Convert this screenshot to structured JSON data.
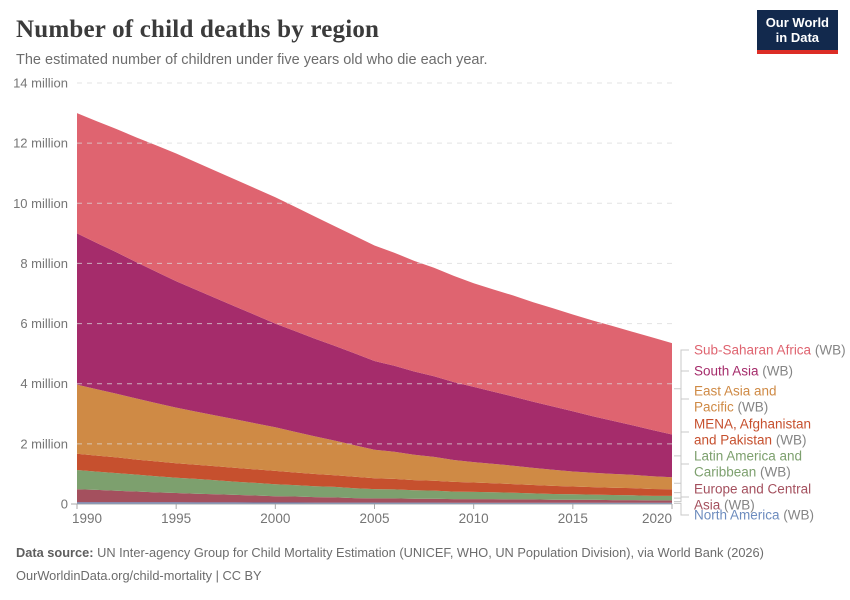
{
  "header": {
    "title": "Number of child deaths by region",
    "subtitle": "The estimated number of children under five years old who die each year."
  },
  "logo": {
    "line1": "Our World",
    "line2": "in Data"
  },
  "footer": {
    "source_label": "Data source:",
    "source_text": " UN Inter-agency Group for Child Mortality Estimation (UNICEF, WHO, UN Population Division), via World Bank (2026)",
    "license_line": "OurWorldinData.org/child-mortality | CC BY"
  },
  "chart_data": {
    "type": "area",
    "stacked": true,
    "title": "Number of child deaths by region",
    "unit": "million",
    "ylim": [
      0,
      14
    ],
    "grid": true,
    "legend_position": "right",
    "legend_suffix": " (WB)",
    "x": [
      1990,
      1991,
      1992,
      1993,
      1994,
      1995,
      1996,
      1997,
      1998,
      1999,
      2000,
      2001,
      2002,
      2003,
      2004,
      2005,
      2006,
      2007,
      2008,
      2009,
      2010,
      2011,
      2012,
      2013,
      2014,
      2015,
      2016,
      2017,
      2018,
      2019,
      2020
    ],
    "xticks": [
      "1990",
      "1995",
      "2000",
      "2005",
      "2010",
      "2015",
      "2020"
    ],
    "yticks": [
      {
        "value": 0,
        "label": "0"
      },
      {
        "value": 2,
        "label": "2 million"
      },
      {
        "value": 4,
        "label": "4 million"
      },
      {
        "value": 6,
        "label": "6 million"
      },
      {
        "value": 8,
        "label": "8 million"
      },
      {
        "value": 10,
        "label": "10 million"
      },
      {
        "value": 12,
        "label": "12 million"
      },
      {
        "value": 14,
        "label": "14 million"
      }
    ],
    "series_order": "first entry is drawn on top of the stack",
    "series": [
      {
        "name": "Sub-Saharan Africa",
        "color": "#df6470",
        "values": [
          4.0,
          4.05,
          4.1,
          4.15,
          4.2,
          4.25,
          4.24,
          4.23,
          4.22,
          4.21,
          4.2,
          4.13,
          4.06,
          3.98,
          3.91,
          3.84,
          3.76,
          3.68,
          3.61,
          3.53,
          3.45,
          3.4,
          3.36,
          3.31,
          3.27,
          3.22,
          3.18,
          3.15,
          3.11,
          3.08,
          3.04
        ]
      },
      {
        "name": "South Asia",
        "color": "#a52c6b",
        "values": [
          5.03,
          4.86,
          4.7,
          4.53,
          4.37,
          4.2,
          4.05,
          3.9,
          3.75,
          3.6,
          3.45,
          3.35,
          3.25,
          3.15,
          3.05,
          2.95,
          2.86,
          2.77,
          2.68,
          2.59,
          2.5,
          2.4,
          2.3,
          2.2,
          2.1,
          2.0,
          1.88,
          1.77,
          1.65,
          1.54,
          1.42
        ]
      },
      {
        "name": "East Asia and Pacific",
        "color": "#cf8a45",
        "values": [
          2.3,
          2.21,
          2.12,
          2.03,
          1.94,
          1.85,
          1.77,
          1.69,
          1.61,
          1.53,
          1.45,
          1.35,
          1.25,
          1.15,
          1.05,
          0.95,
          0.9,
          0.84,
          0.79,
          0.73,
          0.68,
          0.64,
          0.61,
          0.57,
          0.54,
          0.5,
          0.48,
          0.46,
          0.44,
          0.42,
          0.4
        ]
      },
      {
        "name": "MENA, Afghanistan and Pakistan",
        "color": "#c6502e",
        "values": [
          0.54,
          0.53,
          0.52,
          0.5,
          0.49,
          0.48,
          0.47,
          0.46,
          0.46,
          0.45,
          0.44,
          0.42,
          0.41,
          0.39,
          0.38,
          0.36,
          0.35,
          0.34,
          0.33,
          0.32,
          0.31,
          0.3,
          0.29,
          0.28,
          0.27,
          0.26,
          0.25,
          0.24,
          0.24,
          0.23,
          0.22
        ]
      },
      {
        "name": "Latin America and Caribbean",
        "color": "#7da06e",
        "values": [
          0.64,
          0.61,
          0.59,
          0.56,
          0.54,
          0.51,
          0.49,
          0.47,
          0.44,
          0.42,
          0.4,
          0.38,
          0.36,
          0.35,
          0.33,
          0.31,
          0.3,
          0.28,
          0.27,
          0.25,
          0.24,
          0.23,
          0.22,
          0.2,
          0.19,
          0.18,
          0.17,
          0.17,
          0.16,
          0.15,
          0.15
        ]
      },
      {
        "name": "Europe and Central Asia",
        "color": "#a4505e",
        "values": [
          0.43,
          0.41,
          0.38,
          0.36,
          0.33,
          0.31,
          0.29,
          0.27,
          0.25,
          0.23,
          0.21,
          0.2,
          0.18,
          0.17,
          0.15,
          0.14,
          0.14,
          0.13,
          0.13,
          0.12,
          0.12,
          0.12,
          0.11,
          0.11,
          0.1,
          0.1,
          0.1,
          0.09,
          0.09,
          0.08,
          0.08
        ]
      },
      {
        "name": "North America",
        "color": "#6d8cbe",
        "values": [
          0.06,
          0.059,
          0.058,
          0.057,
          0.056,
          0.055,
          0.054,
          0.053,
          0.052,
          0.051,
          0.05,
          0.049,
          0.048,
          0.048,
          0.047,
          0.046,
          0.046,
          0.045,
          0.045,
          0.044,
          0.044,
          0.043,
          0.043,
          0.042,
          0.042,
          0.041,
          0.041,
          0.04,
          0.04,
          0.04,
          0.04
        ]
      }
    ],
    "colors": {
      "grid": "#d9d9d9",
      "axis": "#a8a8a8",
      "tick_label": "#757575",
      "connector": "#c8c8c8",
      "logo_bg": "#12294d",
      "logo_red": "#dc2d26"
    }
  }
}
